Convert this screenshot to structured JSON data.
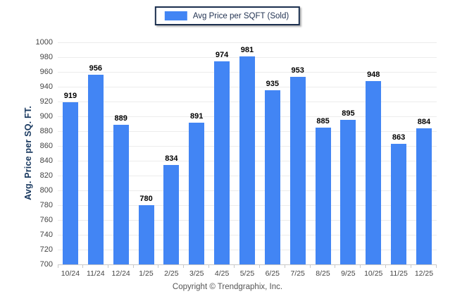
{
  "legend": {
    "label": "Avg Price per SQFT (Sold)"
  },
  "footer": {
    "copyright": "Copyright © Trendgraphix, Inc."
  },
  "chart_data": {
    "type": "bar",
    "title": "",
    "xlabel": "",
    "ylabel": "Avg. Price per SQ. FT.",
    "categories": [
      "10/24",
      "11/24",
      "12/24",
      "1/25",
      "2/25",
      "3/25",
      "4/25",
      "5/25",
      "6/25",
      "7/25",
      "8/25",
      "9/25",
      "10/25",
      "11/25",
      "12/25"
    ],
    "values": [
      919,
      956,
      889,
      780,
      834,
      891,
      974,
      981,
      935,
      953,
      885,
      895,
      948,
      863,
      884
    ],
    "ylim": [
      700,
      1000
    ],
    "ytick_step": 20,
    "grid": true,
    "legend_position": "top-center",
    "bar_color": "#4285F4"
  },
  "colors": {
    "bar": "#4285F4",
    "gridline": "#ececec",
    "axis_line": "#c9c9c9",
    "tick_label": "#444444",
    "value_label": "#000000",
    "y_title": "#17375e",
    "legend_border": "#1b2f4e",
    "copyright": "#555555"
  }
}
